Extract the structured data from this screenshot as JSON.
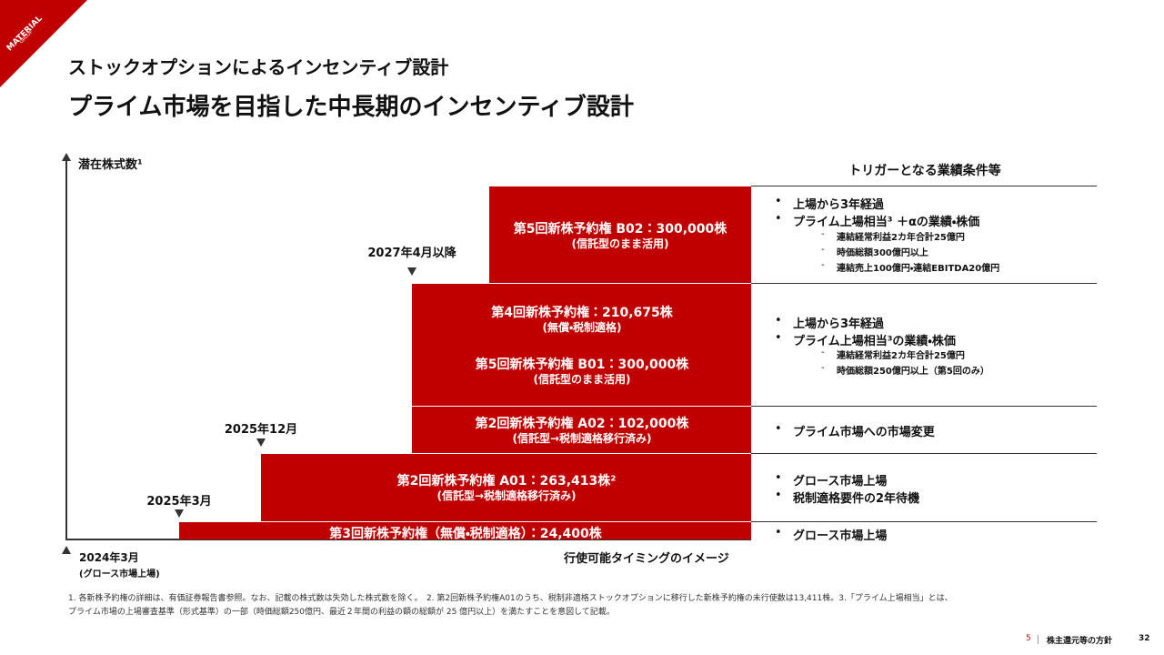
{
  "logo": {
    "name": "MATERIAL",
    "sub": "GROUP"
  },
  "header": {
    "title": "ストックオプションによるインセンティブ設計",
    "subtitle": "プライム市場を目指した中長期のインセンティブ設計"
  },
  "axis": {
    "y_label": "潜在株式数¹",
    "x_label": "行使可能タイミングのイメージ",
    "origin_date": "2024年3月",
    "origin_note": "(グロース市場上場)"
  },
  "milestones": [
    {
      "label": "2025年3月"
    },
    {
      "label": "2025年12月"
    },
    {
      "label": "2027年4月以降"
    }
  ],
  "blocks": [
    {
      "entries": [
        {
          "main": "第5回新株予約権 B02：300,000株",
          "note": "(信託型のまま活用)"
        }
      ]
    },
    {
      "entries": [
        {
          "main": "第4回新株予約権：210,675株",
          "note": "(無償・税制適格)"
        },
        {
          "main": "第5回新株予約権 B01：300,000株",
          "note": "(信託型のまま活用)"
        }
      ]
    },
    {
      "entries": [
        {
          "main": "第2回新株予約権 A02：102,000株",
          "note": "(信託型→税制適格移行済み)"
        }
      ]
    },
    {
      "entries": [
        {
          "main": "第2回新株予約権 A01：263,413株²",
          "note": "(信託型→税制適格移行済み)"
        }
      ]
    },
    {
      "entries": [
        {
          "main": "第3回新株予約権（無償・税制適格）：24,400株"
        }
      ]
    }
  ],
  "conditions": {
    "title": "トリガーとなる業績条件等",
    "groups": [
      {
        "bullets": [
          "上場から3年経過",
          "プライム上場相当³ ＋αの業績・株価"
        ],
        "subs": [
          "連結経常利益2カ年合計25億円",
          "時価総額300億円以上",
          "連結売上100億円・連結EBITDA20億円"
        ]
      },
      {
        "bullets": [
          "上場から3年経過",
          "プライム上場相当³の業績・株価"
        ],
        "subs": [
          "連結経常利益2カ年合計25億円",
          "時価総額250億円以上（第5回のみ）"
        ]
      },
      {
        "bullets": [
          "プライム市場への市場変更"
        ]
      },
      {
        "bullets": [
          "グロース市場上場",
          "税制適格要件の2年待機"
        ]
      },
      {
        "bullets": [
          "グロース市場上場"
        ]
      }
    ]
  },
  "footnotes": [
    "1. 各新株予約権の詳細は、有価証券報告書参照。なお、記載の株式数は失効した株式数を除く。　2. 第2回新株予約権A01のうち、税制非適格ストックオプションに移行した新株予約権の未行使数は13,411株。3.「プライム上場相当」とは、",
    "プライム市場の上場審査基準（形式基準）の一部（時価総額250億円、最近２年間の利益の額の総額が 25 億円以上）を満たすことを意図して記載。"
  ],
  "footer": {
    "section_no": "5",
    "section": "株主還元等の方針",
    "page": "32"
  }
}
